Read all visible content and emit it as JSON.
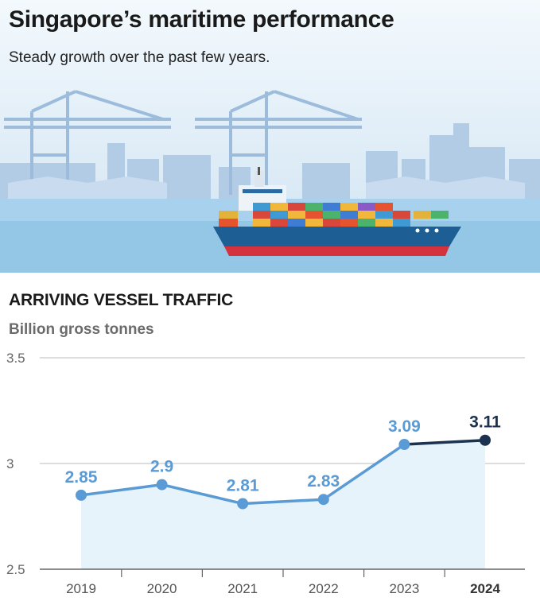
{
  "header": {
    "title": "Singapore’s maritime performance",
    "subtitle": "Steady growth over the past few years."
  },
  "chart_data": {
    "type": "line",
    "title": "ARRIVING VESSEL TRAFFIC",
    "ylabel": "Billion gross tonnes",
    "categories": [
      "2019",
      "2020",
      "2021",
      "2022",
      "2023",
      "2024"
    ],
    "values": [
      2.85,
      2.9,
      2.81,
      2.83,
      3.09,
      3.11
    ],
    "data_labels": [
      "2.85",
      "2.9",
      "2.81",
      "2.83",
      "3.09",
      "3.11"
    ],
    "ylim": [
      2.5,
      3.5
    ],
    "yticks": [
      2.5,
      3,
      3.5
    ],
    "ytick_labels": [
      "2.5",
      "3",
      "3.5"
    ],
    "grid": true,
    "highlight_last": true,
    "colors": {
      "line": "#5b9bd5",
      "last_segment": "#1b3350",
      "area": "#e6f3fb",
      "grid": "#bbbbbb",
      "axis": "#666666"
    }
  },
  "illustration": {
    "sky_top": "#eaf4fb",
    "sky_bottom": "#c8dff0",
    "skyline": "#a7c4e2",
    "sea": "#8ec4e4",
    "hull": "#1d5f95",
    "hull_bottom": "#d4323c"
  }
}
